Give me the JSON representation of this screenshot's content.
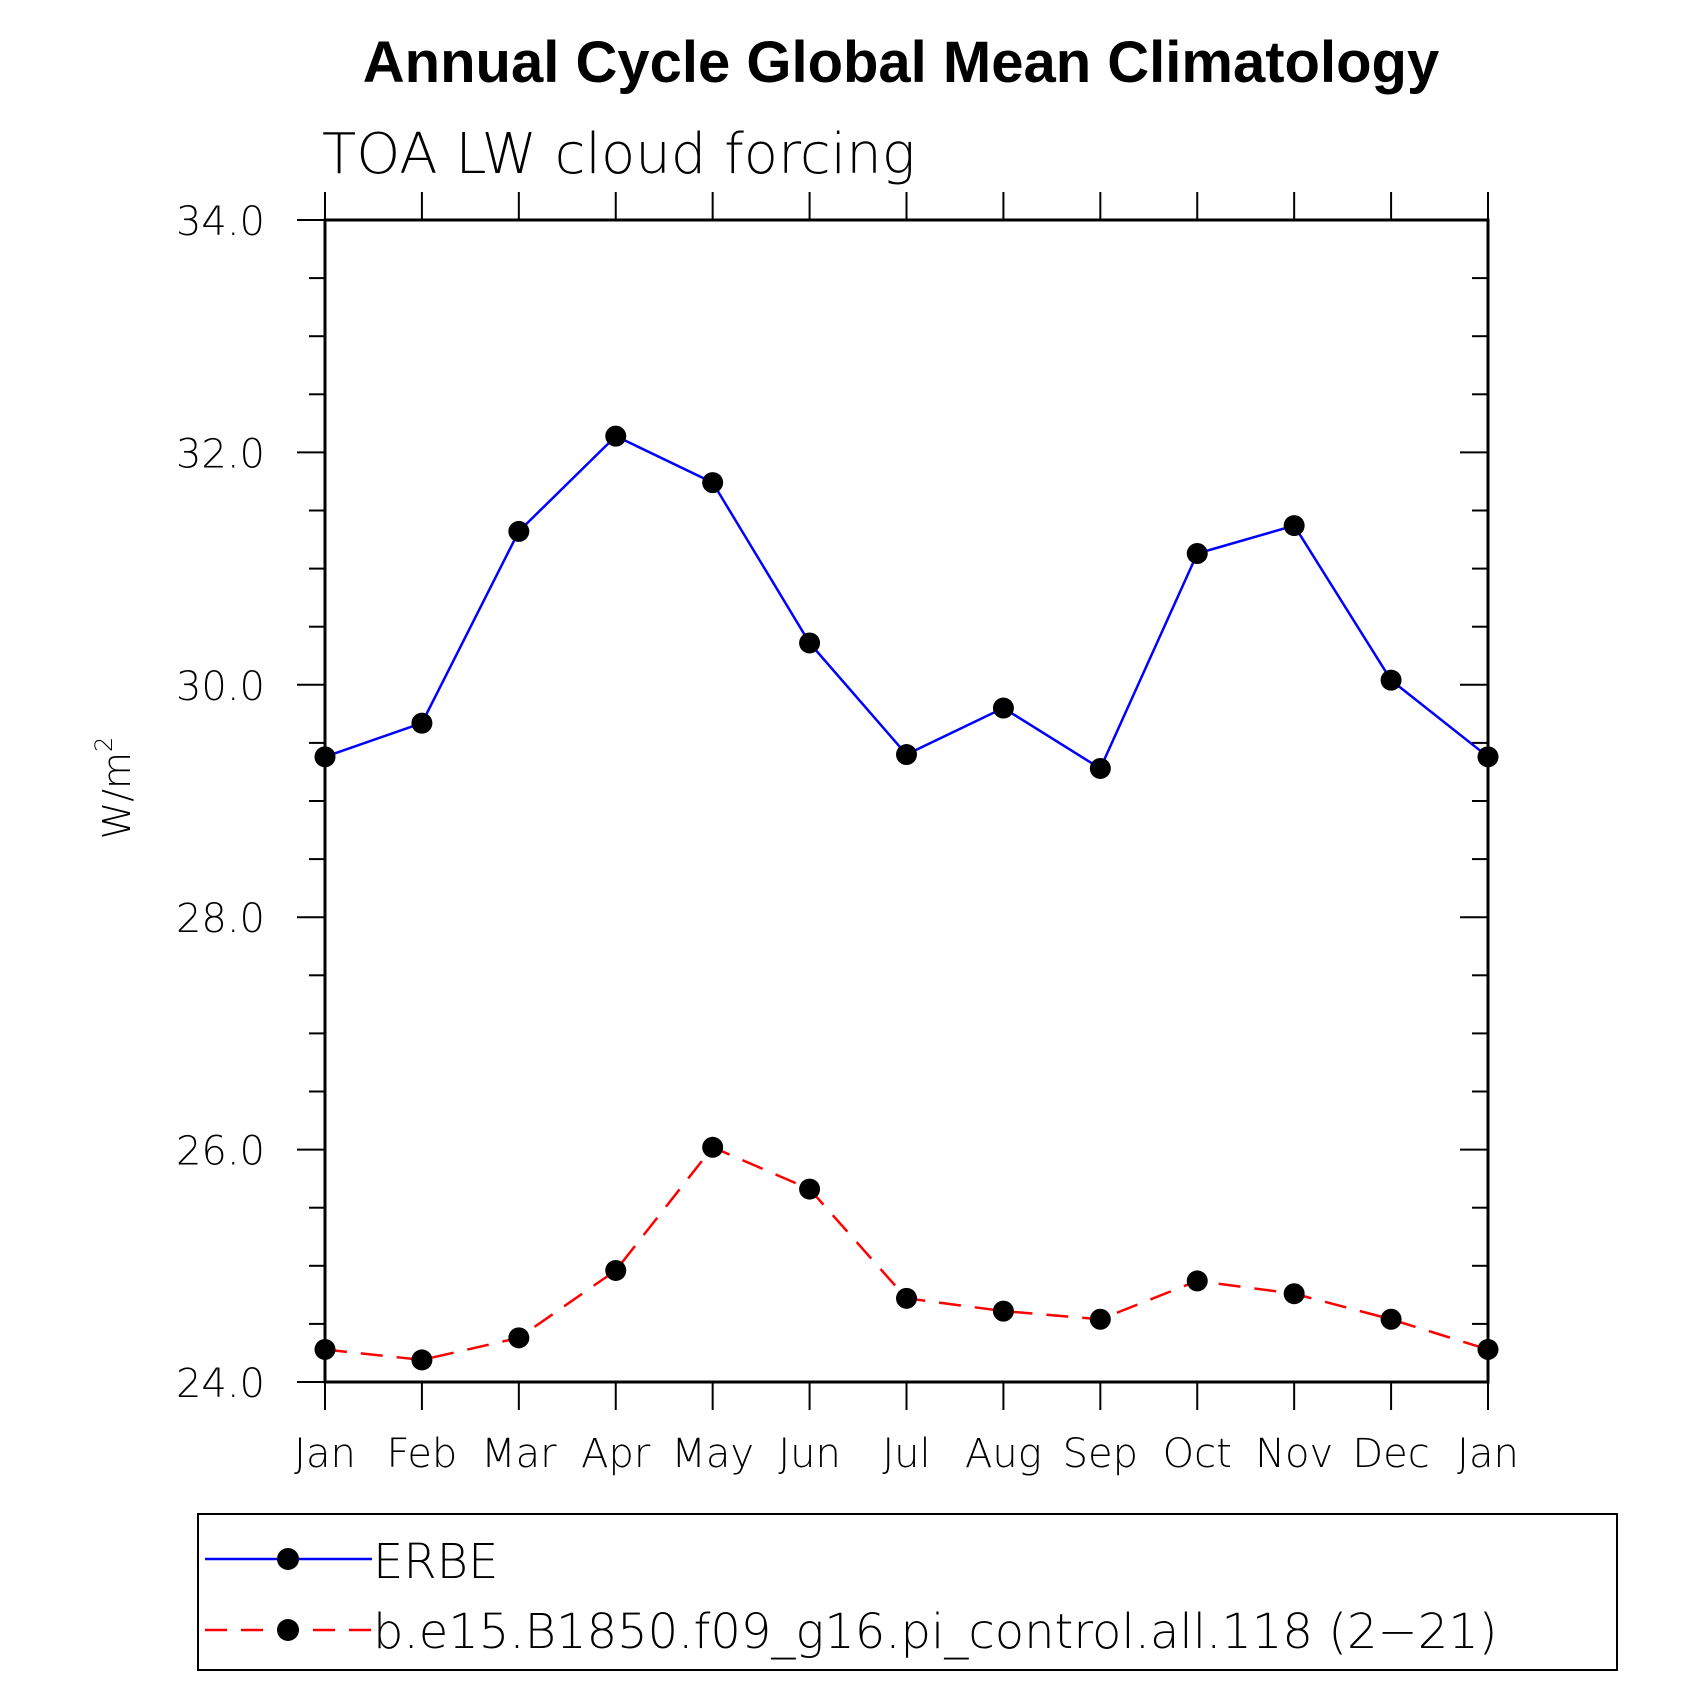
{
  "chart_data": {
    "type": "line",
    "title": "Annual Cycle Global Mean Climatology",
    "subtitle": "TOA LW cloud forcing",
    "ylabel": "W/m",
    "ylabel_superscript": "2",
    "ylim": [
      24.0,
      34.0
    ],
    "y_major_ticks": [
      "34.0",
      "32.0",
      "30.0",
      "28.0",
      "26.0",
      "24.0"
    ],
    "categories": [
      "Jan",
      "Feb",
      "Mar",
      "Apr",
      "May",
      "Jun",
      "Jul",
      "Aug",
      "Sep",
      "Oct",
      "Nov",
      "Dec",
      "Jan"
    ],
    "series": [
      {
        "name": "ERBE",
        "color": "#0000ff",
        "line_style": "solid",
        "marker": "filled-circle",
        "values": [
          29.38,
          29.67,
          31.32,
          32.14,
          31.74,
          30.36,
          29.4,
          29.8,
          29.28,
          31.13,
          31.37,
          30.04,
          29.38
        ]
      },
      {
        "name": "b.e15.B1850.f09_g16.pi_control.all.118 (2−21)",
        "color": "#ff0000",
        "line_style": "dashed",
        "marker": "filled-circle",
        "values": [
          24.28,
          24.19,
          24.38,
          24.96,
          26.02,
          25.66,
          24.72,
          24.61,
          24.54,
          24.87,
          24.76,
          24.54,
          24.28
        ]
      }
    ],
    "grid": false,
    "legend": "bottom"
  }
}
